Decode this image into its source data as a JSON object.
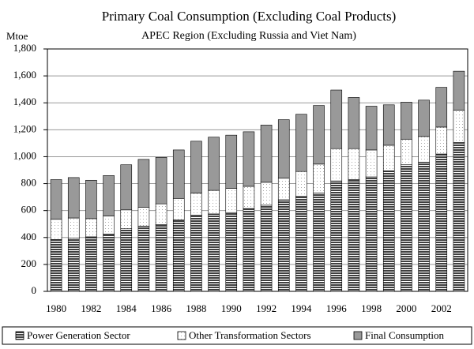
{
  "chart_data": {
    "type": "stacked_bar",
    "title": "Primary Coal Consumption (Excluding Coal Products)",
    "subtitle": "APEC Region (Excluding Russia and Viet Nam)",
    "y_label": "Mtoe",
    "categories": [
      "1980",
      null,
      "1982",
      null,
      "1984",
      null,
      "1986",
      null,
      "1988",
      null,
      "1990",
      null,
      "1992",
      null,
      "1994",
      null,
      "1996",
      null,
      "1998",
      null,
      "2000",
      null,
      "2002",
      null
    ],
    "series": [
      {
        "name": "Power Generation Sector",
        "color": "#404040",
        "values": [
          385,
          395,
          405,
          425,
          465,
          485,
          495,
          530,
          565,
          575,
          585,
          615,
          640,
          680,
          705,
          730,
          820,
          830,
          850,
          895,
          940,
          960,
          1020,
          1105
        ]
      },
      {
        "name": "Other Transformation Sectors",
        "color": "#ffffff",
        "values": [
          150,
          150,
          135,
          135,
          140,
          140,
          155,
          160,
          165,
          175,
          180,
          165,
          170,
          160,
          185,
          215,
          240,
          230,
          200,
          190,
          190,
          190,
          200,
          240
        ]
      },
      {
        "name": "Final Consumption",
        "color": "#999999",
        "values": [
          295,
          300,
          285,
          300,
          335,
          355,
          345,
          360,
          385,
          395,
          395,
          405,
          425,
          435,
          425,
          435,
          435,
          380,
          325,
          300,
          275,
          270,
          295,
          290
        ]
      }
    ],
    "ylim": [
      0,
      1800
    ],
    "yticks": [
      0,
      200,
      400,
      600,
      800,
      {
        "value": 1000,
        "label": "1,000"
      },
      {
        "value": 1200,
        "label": "1,200"
      },
      {
        "value": 1400,
        "label": "1,400"
      },
      {
        "value": 1600,
        "label": "1,600"
      },
      {
        "value": 1800,
        "label": "1,800"
      }
    ],
    "grid": true,
    "legend": "bottom"
  }
}
